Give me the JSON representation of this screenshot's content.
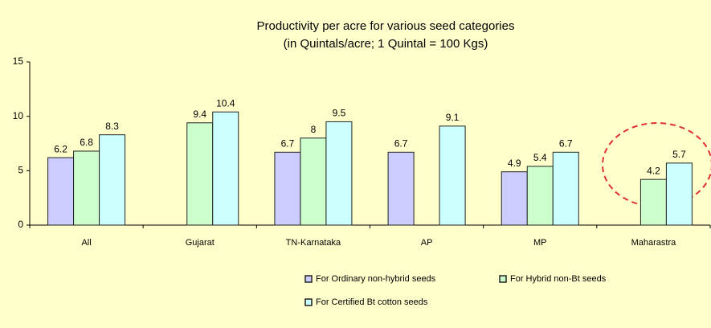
{
  "chart_data": {
    "type": "bar",
    "title": "Productivity per acre for various seed categories",
    "subtitle": "(in Quintals/acre; 1 Quintal = 100 Kgs)",
    "categories": [
      "All",
      "Gujarat",
      "TN-Karnataka",
      "AP",
      "MP",
      "Maharastra"
    ],
    "series": [
      {
        "name": "For Ordinary non-hybrid seeds",
        "color": "#ccccff",
        "values": [
          6.2,
          null,
          6.7,
          6.7,
          4.9,
          null
        ]
      },
      {
        "name": "For Hybrid non-Bt seeds",
        "color": "#ccffcc",
        "values": [
          6.8,
          9.4,
          8,
          null,
          5.4,
          4.2
        ]
      },
      {
        "name": "For Certified Bt cotton seeds",
        "color": "#ccffff",
        "values": [
          8.3,
          10.4,
          9.5,
          9.1,
          6.7,
          5.7
        ]
      }
    ],
    "ylim": [
      0,
      15
    ],
    "yticks": [
      0,
      5,
      10,
      15
    ],
    "grid": false,
    "legend": "bottom"
  }
}
